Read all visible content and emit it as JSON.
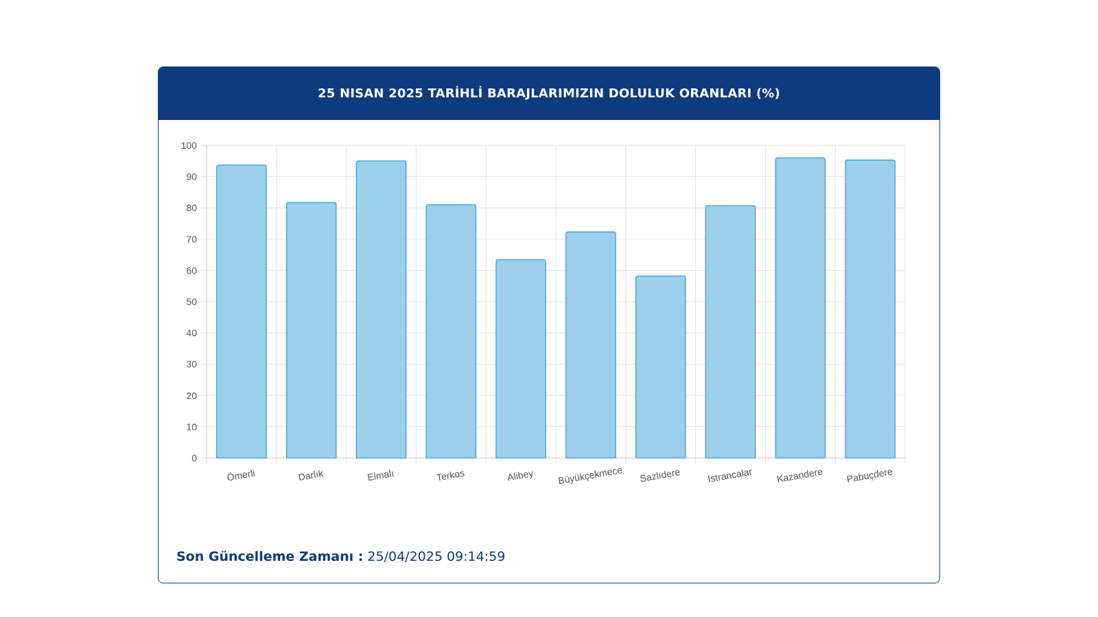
{
  "panel": {
    "title": "25 NISAN 2025 TARİHLİ BARAJLARIMIZIN DOLULUK ORANLARI (%)",
    "update_label": "Son Güncelleme Zamanı :",
    "update_value": "25/04/2025 09:14:59"
  },
  "colors": {
    "header_bg": "#0e3a80",
    "bar_fill": "#9ccfec",
    "bar_stroke": "#3a9fd6",
    "grid": "#e2e2e2",
    "tick_text": "#555555"
  },
  "chart_data": {
    "type": "bar",
    "categories": [
      "Ömerli",
      "Darlık",
      "Elmalı",
      "Terkos",
      "Alibey",
      "Büyükçekmece",
      "Sazlıdere",
      "Istrancalar",
      "Kazandere",
      "Pabuçdere"
    ],
    "values": [
      93.7,
      81.7,
      95.0,
      81.0,
      63.4,
      72.3,
      58.2,
      80.7,
      96.0,
      95.3
    ],
    "yticks": [
      0,
      10,
      20,
      30,
      40,
      50,
      60,
      70,
      80,
      90,
      100
    ],
    "ylim": [
      0,
      100
    ],
    "title": "25 NISAN 2025 TARİHLİ BARAJLARIMIZIN DOLULUK ORANLARI (%)",
    "xlabel": "",
    "ylabel": "",
    "grid": true,
    "legend": "none"
  }
}
